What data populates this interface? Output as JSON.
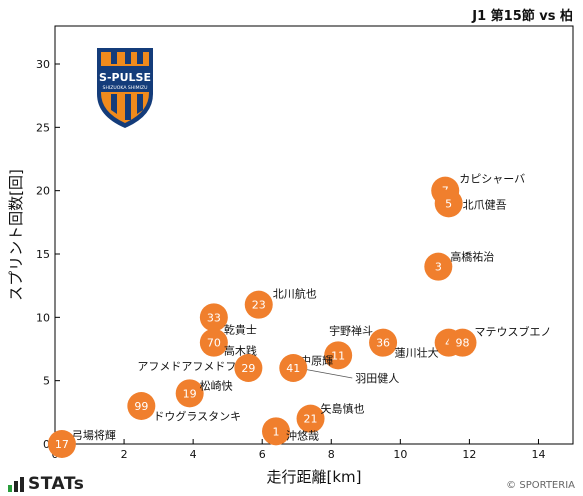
{
  "header": {
    "match_title": "J1 第15節 vs 柏"
  },
  "branding": {
    "crest_name": "S-PULSE",
    "crest_sub": "SHIZUOKA SHIMIZU",
    "stats_label": "STATs",
    "copyright": "© SPORTERIA"
  },
  "colors": {
    "point": "#f07f2d",
    "label_number": "#ffffff",
    "crest_orange": "#f08a1c",
    "crest_navy": "#143c7a"
  },
  "chart_data": {
    "type": "scatter",
    "title": "J1 第15節 vs 柏",
    "xlabel": "走行距離[km]",
    "ylabel": "スプリント回数[回]",
    "xlim": [
      0,
      15
    ],
    "ylim": [
      0,
      33
    ],
    "xticks": [
      0,
      2,
      4,
      6,
      8,
      10,
      12,
      14
    ],
    "yticks": [
      0,
      5,
      10,
      15,
      20,
      25,
      30
    ],
    "points": [
      {
        "number": "7",
        "name": "カピシャーバ",
        "x": 11.3,
        "y": 20
      },
      {
        "number": "5",
        "name": "北爪健吾",
        "x": 11.4,
        "y": 19
      },
      {
        "number": "3",
        "name": "高橋祐治",
        "x": 11.1,
        "y": 14
      },
      {
        "number": "23",
        "name": "北川航也",
        "x": 5.9,
        "y": 11
      },
      {
        "number": "33",
        "name": "乾貴士",
        "x": 4.6,
        "y": 10
      },
      {
        "number": "70",
        "name": "高木践",
        "x": 4.6,
        "y": 8
      },
      {
        "number": "36",
        "name": "宇野禅斗",
        "x": 9.5,
        "y": 8
      },
      {
        "number": "4",
        "name": "蓮川壮大",
        "x": 11.4,
        "y": 8
      },
      {
        "number": "98",
        "name": "マテウスブエノ",
        "x": 11.8,
        "y": 8
      },
      {
        "number": "11",
        "name": "中原輝",
        "x": 8.2,
        "y": 7
      },
      {
        "number": "29",
        "name": "アフメドアフメドフ",
        "x": 5.6,
        "y": 6
      },
      {
        "number": "41",
        "name": "羽田健人",
        "x": 6.9,
        "y": 6
      },
      {
        "number": "19",
        "name": "松崎快",
        "x": 3.9,
        "y": 4
      },
      {
        "number": "99",
        "name": "ドウグラスタンキ",
        "x": 2.5,
        "y": 3
      },
      {
        "number": "21",
        "name": "矢島慎也",
        "x": 7.4,
        "y": 2
      },
      {
        "number": "1",
        "name": "沖悠哉",
        "x": 6.4,
        "y": 1
      },
      {
        "number": "17",
        "name": "弓場将輝",
        "x": 0.2,
        "y": 0
      }
    ]
  }
}
